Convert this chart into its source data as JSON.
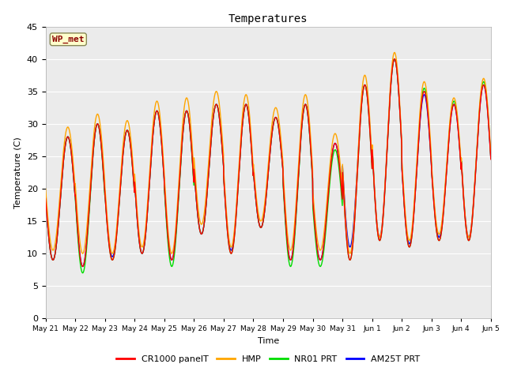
{
  "title": "Temperatures",
  "xlabel": "Time",
  "ylabel": "Temperature (C)",
  "ylim": [
    0,
    45
  ],
  "yticks": [
    0,
    5,
    10,
    15,
    20,
    25,
    30,
    35,
    40,
    45
  ],
  "annotation_text": "WP_met",
  "annotation_color": "#8B0000",
  "annotation_bg": "#FFFFCC",
  "plot_bg": "#EBEBEB",
  "series": {
    "CR1000 panelT": {
      "color": "#FF0000",
      "lw": 1.0,
      "zorder": 4
    },
    "HMP": {
      "color": "#FFA500",
      "lw": 1.0,
      "zorder": 3
    },
    "NR01 PRT": {
      "color": "#00DD00",
      "lw": 1.0,
      "zorder": 2
    },
    "AM25T PRT": {
      "color": "#0000FF",
      "lw": 1.0,
      "zorder": 1
    }
  },
  "x_tick_labels": [
    "May 21",
    "May 22",
    "May 23",
    "May 24",
    "May 25",
    "May 26",
    "May 27",
    "May 28",
    "May 29",
    "May 30",
    "May 31",
    "Jun 1",
    "Jun 2",
    "Jun 3",
    "Jun 4",
    "Jun 5"
  ],
  "n_days": 15,
  "pts_per_day": 144,
  "daily_highs": [
    28,
    30,
    29,
    32,
    32,
    33,
    33,
    31,
    33,
    27,
    36,
    40,
    35,
    33,
    36
  ],
  "daily_lows": [
    9,
    8,
    9,
    10,
    9,
    13,
    10,
    14,
    9,
    9,
    9,
    12,
    11,
    12,
    12
  ],
  "peak_hour": 14,
  "trough_hour": 6,
  "hmp_high_offset": [
    1.5,
    1.5,
    1.5,
    1.5,
    2.0,
    2.0,
    1.5,
    1.5,
    1.5,
    1.5,
    1.5,
    1.0,
    1.5,
    1.0,
    1.0
  ],
  "hmp_low_offset": [
    1.5,
    2.0,
    1.0,
    1.0,
    1.0,
    1.5,
    1.0,
    1.0,
    1.5,
    1.5,
    1.0,
    0.5,
    1.0,
    1.0,
    0.5
  ],
  "nr_high_offset": [
    0.0,
    0.0,
    0.0,
    0.0,
    0.0,
    0.0,
    0.0,
    0.0,
    0.0,
    -1.0,
    0.0,
    0.0,
    0.5,
    0.5,
    0.5
  ],
  "nr_low_offset": [
    0.0,
    -1.0,
    0.0,
    0.0,
    -1.0,
    0.0,
    0.0,
    0.0,
    -1.0,
    -1.0,
    0.0,
    0.0,
    0.0,
    0.0,
    0.0
  ],
  "am_high_offset": [
    0.0,
    0.0,
    0.0,
    0.0,
    0.0,
    0.0,
    0.0,
    0.0,
    0.0,
    0.0,
    0.0,
    0.0,
    -0.5,
    0.0,
    0.0
  ],
  "am_low_offset": [
    0.0,
    0.0,
    0.5,
    0.0,
    0.0,
    0.0,
    0.5,
    0.0,
    0.0,
    0.0,
    2.0,
    0.5,
    0.5,
    0.5,
    0.5
  ]
}
